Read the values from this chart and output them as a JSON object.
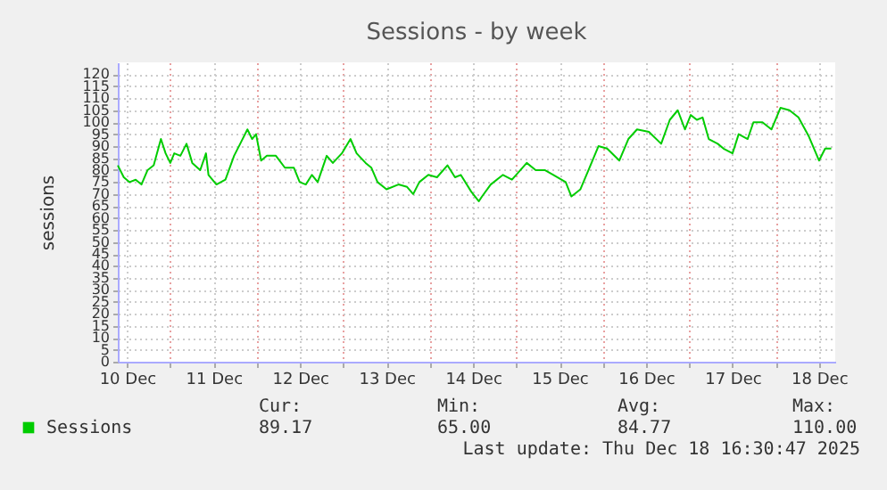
{
  "chart_data": {
    "type": "line",
    "title": "Sessions - by week",
    "ylabel": "sessions",
    "xlim": [
      "2025-12-10T09:26",
      "2025-12-18T16:30"
    ],
    "xticks": [
      {
        "value": "2025-12-10T12:00",
        "label": "10 Dec"
      },
      {
        "value": "2025-12-11T00:00",
        "label": null
      },
      {
        "value": "2025-12-11T12:00",
        "label": "11 Dec"
      },
      {
        "value": "2025-12-12T00:00",
        "label": null
      },
      {
        "value": "2025-12-12T12:00",
        "label": "12 Dec"
      },
      {
        "value": "2025-12-13T00:00",
        "label": null
      },
      {
        "value": "2025-12-13T12:00",
        "label": "13 Dec"
      },
      {
        "value": "2025-12-14T00:00",
        "label": null
      },
      {
        "value": "2025-12-14T12:00",
        "label": "14 Dec"
      },
      {
        "value": "2025-12-15T00:00",
        "label": null
      },
      {
        "value": "2025-12-15T12:00",
        "label": "15 Dec"
      },
      {
        "value": "2025-12-16T00:00",
        "label": null
      },
      {
        "value": "2025-12-16T12:00",
        "label": "16 Dec"
      },
      {
        "value": "2025-12-17T00:00",
        "label": null
      },
      {
        "value": "2025-12-17T12:00",
        "label": "17 Dec"
      },
      {
        "value": "2025-12-18T00:00",
        "label": null
      },
      {
        "value": "2025-12-18T12:00",
        "label": "18 Dec"
      }
    ],
    "ylim": [
      0,
      125
    ],
    "yticks": [
      0,
      5,
      10,
      15,
      20,
      25,
      30,
      35,
      40,
      45,
      50,
      55,
      60,
      65,
      70,
      75,
      80,
      85,
      90,
      95,
      100,
      105,
      110,
      115,
      120
    ],
    "grid": true,
    "legend": "bottom",
    "marker": "none",
    "line_style": "solid",
    "annotations": [
      "Cur:",
      "89.17",
      "Min:",
      "65.00",
      "Avg:",
      "84.77",
      "Max:",
      "110.00",
      "Last update: Thu Dec 18 16:30:47 2025"
    ],
    "x": [
      "2025-12-10T09:26",
      "2025-12-10T11:06",
      "2025-12-10T12:42",
      "2025-12-10T14:24",
      "2025-12-10T16:00",
      "2025-12-10T17:42",
      "2025-12-10T19:24",
      "2025-12-10T21:24",
      "2025-12-10T22:42",
      "2025-12-11T00:00",
      "2025-12-11T01:06",
      "2025-12-11T02:48",
      "2025-12-11T04:30",
      "2025-12-11T06:06",
      "2025-12-11T08:18",
      "2025-12-11T09:54",
      "2025-12-11T10:36",
      "2025-12-11T12:48",
      "2025-12-11T15:18",
      "2025-12-11T17:42",
      "2025-12-11T19:24",
      "2025-12-11T21:24",
      "2025-12-11T22:42",
      "2025-12-11T23:48",
      "2025-12-12T01:12",
      "2025-12-12T02:48",
      "2025-12-12T05:18",
      "2025-12-12T07:48",
      "2025-12-12T10:18",
      "2025-12-12T11:54",
      "2025-12-12T13:36",
      "2025-12-12T15:18",
      "2025-12-12T16:54",
      "2025-12-12T19:24",
      "2025-12-12T21:06",
      "2025-12-12T23:36",
      "2025-12-13T02:00",
      "2025-12-13T03:42",
      "2025-12-13T06:12",
      "2025-12-13T07:48",
      "2025-12-13T09:30",
      "2025-12-13T12:00",
      "2025-12-13T15:18",
      "2025-12-13T17:42",
      "2025-12-13T19:24",
      "2025-12-13T21:06",
      "2025-12-13T23:36",
      "2025-12-14T02:00",
      "2025-12-14T04:54",
      "2025-12-14T07:00",
      "2025-12-14T08:36",
      "2025-12-14T11:30",
      "2025-12-14T13:36",
      "2025-12-14T14:30",
      "2025-12-14T16:54",
      "2025-12-14T20:18",
      "2025-12-14T22:48",
      "2025-12-15T02:54",
      "2025-12-15T05:24",
      "2025-12-15T07:54",
      "2025-12-15T10:18",
      "2025-12-15T13:42",
      "2025-12-15T15:18",
      "2025-12-15T17:48",
      "2025-12-15T20:18",
      "2025-12-15T22:48",
      "2025-12-16T01:12",
      "2025-12-16T04:36",
      "2025-12-16T07:06",
      "2025-12-16T09:30",
      "2025-12-16T12:48",
      "2025-12-16T16:12",
      "2025-12-16T18:36",
      "2025-12-16T20:48",
      "2025-12-16T22:48",
      "2025-12-17T00:24",
      "2025-12-17T02:06",
      "2025-12-17T03:42",
      "2025-12-17T05:24",
      "2025-12-17T07:54",
      "2025-12-17T09:30",
      "2025-12-17T12:00",
      "2025-12-17T13:42",
      "2025-12-17T16:12",
      "2025-12-17T17:48",
      "2025-12-17T20:18",
      "2025-12-17T22:48",
      "2025-12-18T01:18",
      "2025-12-18T03:48",
      "2025-12-18T06:18",
      "2025-12-18T09:12",
      "2025-12-18T12:00",
      "2025-12-18T13:42",
      "2025-12-18T15:24"
    ],
    "series": [
      {
        "name": "Sessions",
        "color": "#00cc00",
        "values": [
          82,
          77,
          75,
          76,
          74,
          80,
          82,
          93,
          87,
          83,
          87,
          86,
          91,
          83,
          80,
          87,
          78,
          74,
          76,
          86,
          91,
          97,
          93,
          95,
          84,
          86,
          86,
          81,
          81,
          75,
          74,
          78,
          75,
          86,
          83,
          87,
          93,
          87,
          83,
          81,
          75,
          72,
          74,
          73,
          70,
          75,
          78,
          77,
          82,
          77,
          78,
          71,
          67,
          69,
          74,
          78,
          76,
          83,
          80,
          80,
          78,
          75,
          69,
          72,
          81,
          90,
          89,
          84,
          93,
          97,
          96,
          91,
          101,
          105,
          97,
          103,
          101,
          102,
          93,
          91,
          89,
          87,
          95,
          93,
          100,
          100,
          97,
          106,
          105,
          102,
          94,
          84,
          89,
          89
        ]
      }
    ]
  }
}
